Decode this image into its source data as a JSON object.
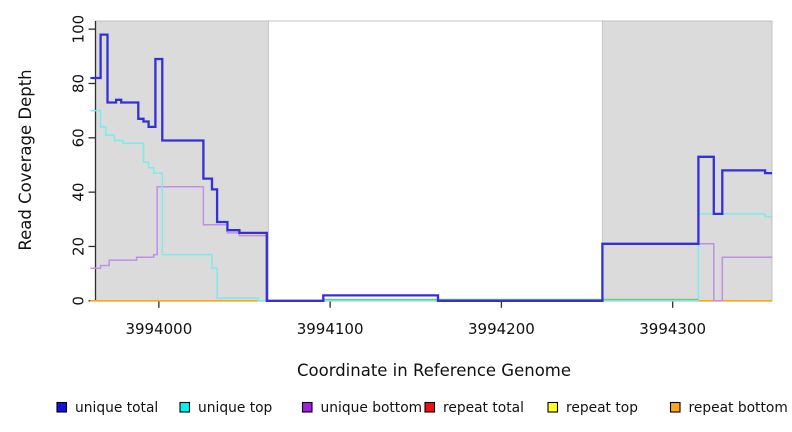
{
  "figure": {
    "background": "#ffffff"
  },
  "chart_data": {
    "type": "line",
    "subtype": "step-coverage-plot",
    "title": "",
    "xlabel": "Coordinate in Reference Genome",
    "ylabel": "Read Coverage Depth",
    "xlim": [
      3993963,
      3994358
    ],
    "ylim": [
      0,
      103
    ],
    "grid": false,
    "legend_position": "bottom",
    "x_ticks": [
      {
        "value": 3994000,
        "label": "3994000"
      },
      {
        "value": 3994100,
        "label": "3994100"
      },
      {
        "value": 3994200,
        "label": "3994200"
      },
      {
        "value": 3994300,
        "label": "3994300"
      }
    ],
    "y_ticks": [
      {
        "value": 0,
        "label": "0"
      },
      {
        "value": 20,
        "label": "20"
      },
      {
        "value": 40,
        "label": "40"
      },
      {
        "value": 60,
        "label": "60"
      },
      {
        "value": 80,
        "label": "80"
      },
      {
        "value": 100,
        "label": "100"
      }
    ],
    "shaded_regions": [
      {
        "from": 3993963,
        "to": 3994064,
        "fill": "#dbdbdb",
        "stroke": "#c8c8c8"
      },
      {
        "from": 3994259,
        "to": 3994358,
        "fill": "#dbdbdb",
        "stroke": "#c8c8c8"
      }
    ],
    "x_end": 3994358,
    "series": [
      {
        "name": "unique_total",
        "legend_label": "unique total",
        "line_color": "#3530d6",
        "legend_fill": "#1111e0",
        "line_width": 2.3,
        "points": [
          [
            3993960,
            82
          ],
          [
            3993966,
            98
          ],
          [
            3993970,
            73
          ],
          [
            3993975,
            74
          ],
          [
            3993978,
            73
          ],
          [
            3993988,
            67
          ],
          [
            3993991,
            66
          ],
          [
            3993994,
            64
          ],
          [
            3993998,
            89
          ],
          [
            3994002,
            59
          ],
          [
            3994026,
            45
          ],
          [
            3994031,
            41
          ],
          [
            3994034,
            29
          ],
          [
            3994040,
            26
          ],
          [
            3994047,
            25
          ],
          [
            3994063,
            0
          ],
          [
            3994096,
            2
          ],
          [
            3994163,
            0
          ],
          [
            3994259,
            21
          ],
          [
            3994315,
            53
          ],
          [
            3994324,
            32
          ],
          [
            3994329,
            48
          ],
          [
            3994354,
            47
          ]
        ]
      },
      {
        "name": "unique_top",
        "legend_label": "unique top",
        "line_color": "#7fe9eb",
        "legend_fill": "#00f2f2",
        "line_width": 1.5,
        "points": [
          [
            3993960,
            70
          ],
          [
            3993966,
            64
          ],
          [
            3993969,
            61
          ],
          [
            3993974,
            59
          ],
          [
            3993979,
            58
          ],
          [
            3993991,
            51
          ],
          [
            3993994,
            49
          ],
          [
            3993997,
            47
          ],
          [
            3994002,
            17
          ],
          [
            3994031,
            12
          ],
          [
            3994034,
            1
          ],
          [
            3994058,
            0
          ],
          [
            3994315,
            32
          ],
          [
            3994354,
            31
          ]
        ]
      },
      {
        "name": "unique_bottom",
        "legend_label": "unique bottom",
        "line_color": "#bd92e5",
        "legend_fill": "#a21fde",
        "line_width": 1.5,
        "points": [
          [
            3993960,
            12
          ],
          [
            3993966,
            13
          ],
          [
            3993971,
            15
          ],
          [
            3993987,
            16
          ],
          [
            3993997,
            17
          ],
          [
            3993999,
            42
          ],
          [
            3994026,
            28
          ],
          [
            3994040,
            25
          ],
          [
            3994047,
            24
          ],
          [
            3994063,
            0
          ],
          [
            3994259,
            21
          ],
          [
            3994324,
            0
          ],
          [
            3994329,
            16
          ]
        ]
      },
      {
        "name": "repeat_total",
        "legend_label": "repeat total",
        "line_color": "#e60000",
        "legend_fill": "#ee1111",
        "line_width": 1.5,
        "points": [
          [
            3993960,
            0
          ]
        ]
      },
      {
        "name": "repeat_top",
        "legend_label": "repeat top",
        "line_color": "#ffff00",
        "legend_fill": "#ffff2a",
        "line_width": 1.5,
        "points": [
          [
            3993960,
            0
          ]
        ]
      },
      {
        "name": "repeat_bottom",
        "legend_label": "repeat bottom",
        "line_color": "#ffa412",
        "legend_fill": "#ffa41e",
        "line_width": 1.6,
        "points": [
          [
            3993960,
            0
          ]
        ]
      }
    ],
    "render_artifacts": [
      {
        "name": "cyan-yellow-overlap-at-zero",
        "color": "#77c77d",
        "from": 3994096,
        "to": 3994315,
        "value": 0.5,
        "line_width": 1.4
      }
    ],
    "colors": {
      "plot_border": "#c0c0c0",
      "axis": "#2e2e2e",
      "tick_text": "#111111",
      "shade_fill": "#dbdbdb",
      "legend_swatch_border": "#000000"
    }
  }
}
